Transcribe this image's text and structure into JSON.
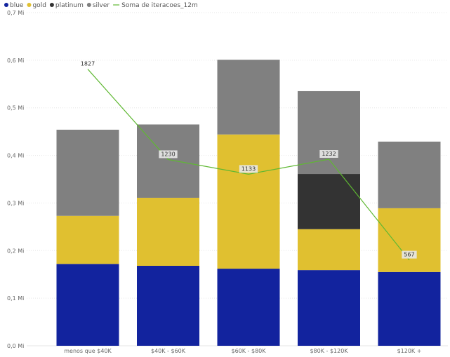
{
  "chart_data": {
    "type": "bar",
    "stacked": true,
    "categories": [
      "menos que $40K",
      "$40K - $60K",
      "$60K - $80K",
      "$80K - $120K",
      "$120K +"
    ],
    "series": [
      {
        "name": "blue",
        "color": "#12239e",
        "values": [
          0.172,
          0.168,
          0.162,
          0.159,
          0.155
        ]
      },
      {
        "name": "gold",
        "color": "#e0c030",
        "values": [
          0.101,
          0.143,
          0.282,
          0.086,
          0.134
        ]
      },
      {
        "name": "platinum",
        "color": "#333333",
        "values": [
          0,
          0,
          0,
          0.116,
          0
        ]
      },
      {
        "name": "silver",
        "color": "#808080",
        "values": [
          0.181,
          0.154,
          0.157,
          0.174,
          0.14
        ]
      }
    ],
    "line_series": {
      "name": "Soma de iteracoes_12m",
      "color": "#5fb832",
      "values": [
        1827,
        1230,
        1133,
        1232,
        567
      ],
      "labels": [
        "1827",
        "1230",
        "1133",
        "1232",
        "567"
      ]
    },
    "y_axis": {
      "min": 0,
      "max": 0.7,
      "ticks": [
        {
          "value": 0,
          "label": "0,0 Mi"
        },
        {
          "value": 0.1,
          "label": "0,1 Mi"
        },
        {
          "value": 0.2,
          "label": "0,2 Mi"
        },
        {
          "value": 0.3,
          "label": "0,3 Mi"
        },
        {
          "value": 0.4,
          "label": "0,4 Mi"
        },
        {
          "value": 0.5,
          "label": "0,5 Mi"
        },
        {
          "value": 0.6,
          "label": "0,6 Mi"
        },
        {
          "value": 0.7,
          "label": "0,7 Mi"
        }
      ]
    },
    "line_axis": {
      "min": 0,
      "max": 2200
    },
    "grid": true,
    "legend_position": "top-left"
  }
}
